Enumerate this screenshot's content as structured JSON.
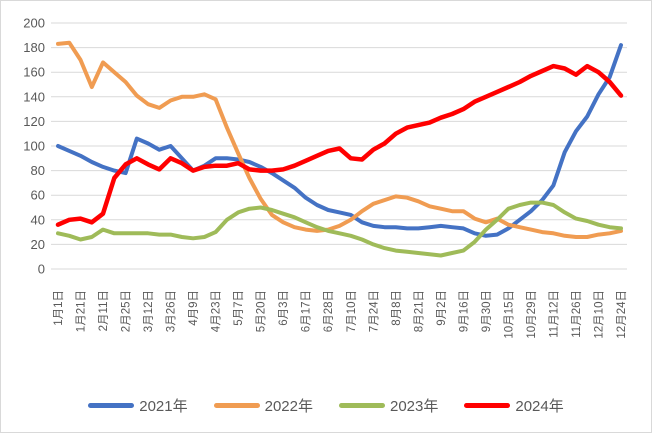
{
  "window": {
    "background": "#ffffff",
    "border_color": "#d9d9d9"
  },
  "chart_data": {
    "type": "line",
    "title": "",
    "xlabel": "",
    "ylabel": "",
    "ylim": [
      0,
      200
    ],
    "y_ticks": [
      0,
      20,
      40,
      60,
      80,
      100,
      120,
      140,
      160,
      180,
      200
    ],
    "grid": "horizontal",
    "gridline_color": "#d9d9d9",
    "axis_text_color": "#595959",
    "legend_position": "bottom",
    "points_per_series": 51,
    "x_tick_every": 2,
    "x_labels": [
      "1月1日",
      "1月21日",
      "2月11日",
      "2月25日",
      "3月12日",
      "3月26日",
      "4月9日",
      "4月23日",
      "5月7日",
      "5月20日",
      "6月3日",
      "6月17日",
      "6月28日",
      "7月10日",
      "7月24日",
      "8月8日",
      "8月21日",
      "9月2日",
      "9月16日",
      "9月30日",
      "10月15日",
      "10月29日",
      "11月12日",
      "11月26日",
      "12月10日",
      "12月24日"
    ],
    "series": [
      {
        "name": "2021年",
        "color": "#4472c4",
        "values": [
          100,
          96,
          92,
          87,
          83,
          80,
          78,
          106,
          102,
          97,
          100,
          90,
          80,
          84,
          90,
          90,
          89,
          87,
          83,
          78,
          72,
          66,
          58,
          52,
          48,
          46,
          44,
          38,
          35,
          34,
          34,
          33,
          33,
          34,
          35,
          34,
          33,
          29,
          27,
          28,
          33,
          40,
          47,
          56,
          68,
          95,
          112,
          124,
          142,
          156,
          182
        ]
      },
      {
        "name": "2022年",
        "color": "#f09c52",
        "values": [
          183,
          184,
          170,
          148,
          168,
          160,
          152,
          141,
          134,
          131,
          137,
          140,
          140,
          142,
          138,
          115,
          94,
          74,
          57,
          44,
          38,
          34,
          32,
          31,
          32,
          35,
          40,
          47,
          53,
          56,
          59,
          58,
          55,
          51,
          49,
          47,
          47,
          41,
          38,
          41,
          36,
          34,
          32,
          30,
          29,
          27,
          26,
          26,
          28,
          29,
          31
        ]
      },
      {
        "name": "2023年",
        "color": "#9fbb59",
        "values": [
          29,
          27,
          24,
          26,
          32,
          29,
          29,
          29,
          29,
          28,
          28,
          26,
          25,
          26,
          30,
          40,
          46,
          49,
          50,
          48,
          45,
          42,
          38,
          34,
          31,
          29,
          27,
          24,
          20,
          17,
          15,
          14,
          13,
          12,
          11,
          13,
          15,
          22,
          32,
          40,
          49,
          52,
          54,
          54,
          52,
          46,
          41,
          39,
          36,
          34,
          33
        ]
      },
      {
        "name": "2024年",
        "color": "#ff0000",
        "values": [
          36,
          40,
          41,
          38,
          45,
          74,
          85,
          90,
          85,
          81,
          90,
          86,
          80,
          83,
          84,
          84,
          86,
          81,
          80,
          80,
          81,
          84,
          88,
          92,
          96,
          98,
          90,
          89,
          97,
          102,
          110,
          115,
          117,
          119,
          123,
          126,
          130,
          136,
          140,
          144,
          148,
          152,
          157,
          161,
          165,
          163,
          158,
          165,
          160,
          152,
          141
        ]
      }
    ]
  }
}
